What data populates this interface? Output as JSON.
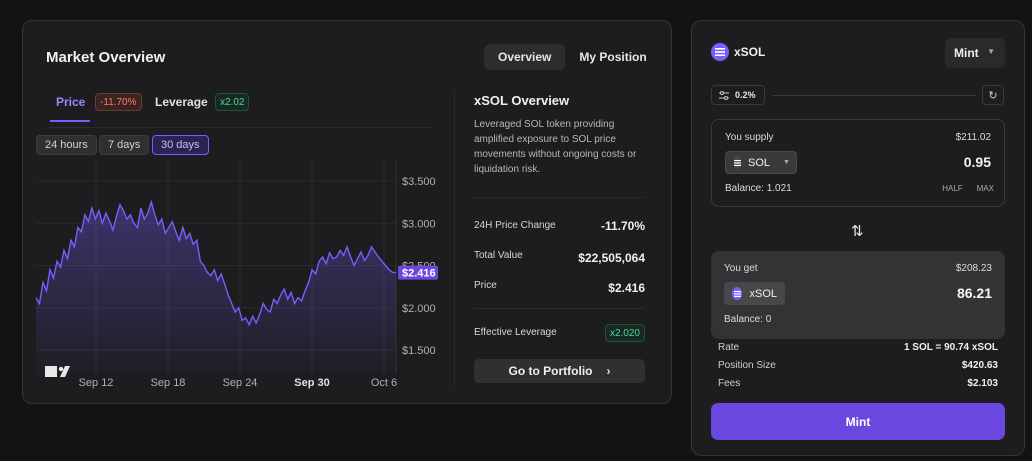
{
  "market": {
    "title": "Market Overview",
    "tabs": [
      {
        "label": "Overview",
        "active": true
      },
      {
        "label": "My Position",
        "active": false
      }
    ],
    "price_tab": {
      "label": "Price",
      "badge": "-11.70%"
    },
    "leverage_tab": {
      "label": "Leverage",
      "badge": "x2.02"
    },
    "ranges": [
      {
        "label": "24 hours",
        "active": false
      },
      {
        "label": "7 days",
        "active": false
      },
      {
        "label": "30 days",
        "active": true
      }
    ]
  },
  "chart_data": {
    "type": "area",
    "x_ticks": [
      "Sep 12",
      "Sep 18",
      "Sep 24",
      "Sep 30",
      "Oct 6"
    ],
    "y_ticks": [
      "$3.500",
      "$3.000",
      "$2.500",
      "$2.000",
      "$1.500"
    ],
    "ylim": [
      1.5,
      3.5
    ],
    "current_value_label": "$2.416",
    "current_value": 2.416,
    "line_color": "#7c5cff",
    "values": [
      2.12,
      2.05,
      2.3,
      2.2,
      2.45,
      2.35,
      2.55,
      2.48,
      2.68,
      2.58,
      2.8,
      2.72,
      2.95,
      2.9,
      3.1,
      3.02,
      3.18,
      3.05,
      3.15,
      3.0,
      3.12,
      3.03,
      2.92,
      3.08,
      3.22,
      3.15,
      3.05,
      3.1,
      3.0,
      2.95,
      3.18,
      3.05,
      3.12,
      3.25,
      3.1,
      2.98,
      3.05,
      2.88,
      2.95,
      3.02,
      2.9,
      2.8,
      2.95,
      2.82,
      2.88,
      2.75,
      2.8,
      2.55,
      2.5,
      2.42,
      2.38,
      2.45,
      2.32,
      2.4,
      2.28,
      2.15,
      2.05,
      1.95,
      2.0,
      1.85,
      1.88,
      1.8,
      1.9,
      1.82,
      1.92,
      2.05,
      1.98,
      1.95,
      2.1,
      2.05,
      2.15,
      2.22,
      2.1,
      2.18,
      2.05,
      2.12,
      2.08,
      2.2,
      2.3,
      2.45,
      2.4,
      2.55,
      2.6,
      2.52,
      2.65,
      2.58,
      2.6,
      2.68,
      2.62,
      2.72,
      2.6,
      2.5,
      2.58,
      2.66,
      2.56,
      2.62,
      2.72,
      2.66,
      2.6,
      2.55,
      2.5,
      2.45,
      2.42,
      2.416
    ]
  },
  "overview": {
    "title": "xSOL Overview",
    "description": "Leveraged SOL token providing amplified exposure to SOL price movements without ongoing costs or liquidation risk.",
    "change_label": "24H Price Change",
    "change_value": "-11.70%",
    "total_label": "Total Value",
    "total_value": "$22,505,064",
    "price_label": "Price",
    "price_value": "$2.416",
    "leverage_label": "Effective Leverage",
    "leverage_value": "x2.020",
    "portfolio_button": "Go to Portfolio"
  },
  "mint": {
    "token": "xSOL",
    "mode": "Mint",
    "slippage": "0.2%",
    "supply": {
      "label": "You supply",
      "usd": "$211.02",
      "token": "SOL",
      "amount": "0.95",
      "balance": "Balance: 1.021",
      "half": "HALF",
      "max": "MAX"
    },
    "get": {
      "label": "You get",
      "usd": "$208.23",
      "token": "xSOL",
      "amount": "86.21",
      "balance": "Balance: 0"
    },
    "info": [
      {
        "label": "Rate",
        "value": "1 SOL = 90.74 xSOL"
      },
      {
        "label": "Position Size",
        "value": "$420.63"
      },
      {
        "label": "Fees",
        "value": "$2.103"
      }
    ],
    "button": "Mint"
  }
}
